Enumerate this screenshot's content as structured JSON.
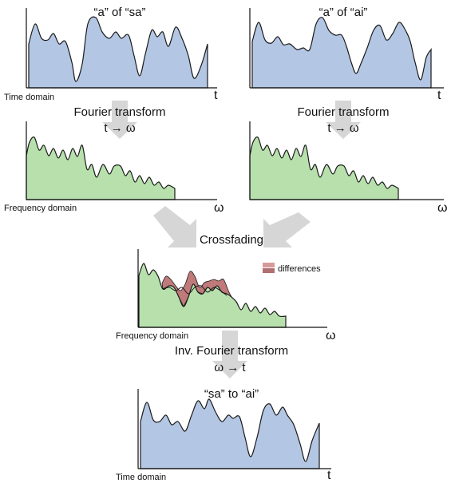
{
  "colors": {
    "time_fill": "#b3c6e3",
    "freq_fill": "#b7e0ad",
    "diff_fill": "#c07a7a",
    "arrow": "#d6d6d6",
    "line": "#1a1a1a"
  },
  "panels": {
    "sa": {
      "title": "“a” of “sa”",
      "axis_label": "Time domain",
      "axis_var": "t"
    },
    "ai": {
      "title": "“a” of “ai”",
      "axis_label": "Time domain",
      "axis_var": "t"
    },
    "freq_left": {
      "axis_label": "Frequency domain",
      "axis_var": "ω"
    },
    "freq_right": {
      "axis_label": "",
      "axis_var": "ω"
    },
    "crossfade": {
      "axis_label": "Frequency domain",
      "axis_var": "ω",
      "legend": "differences"
    },
    "result": {
      "title": "“sa” to “ai”",
      "axis_label": "Time domain",
      "axis_var": "t"
    }
  },
  "steps": {
    "fourier_left": {
      "title": "Fourier transform",
      "sub": "t → ω"
    },
    "fourier_right": {
      "title": "Fourier transform",
      "sub": "t → ω"
    },
    "crossfading": {
      "title": "Crossfading"
    },
    "inverse": {
      "title": "Inv. Fourier transform",
      "sub": "ω → t"
    }
  }
}
